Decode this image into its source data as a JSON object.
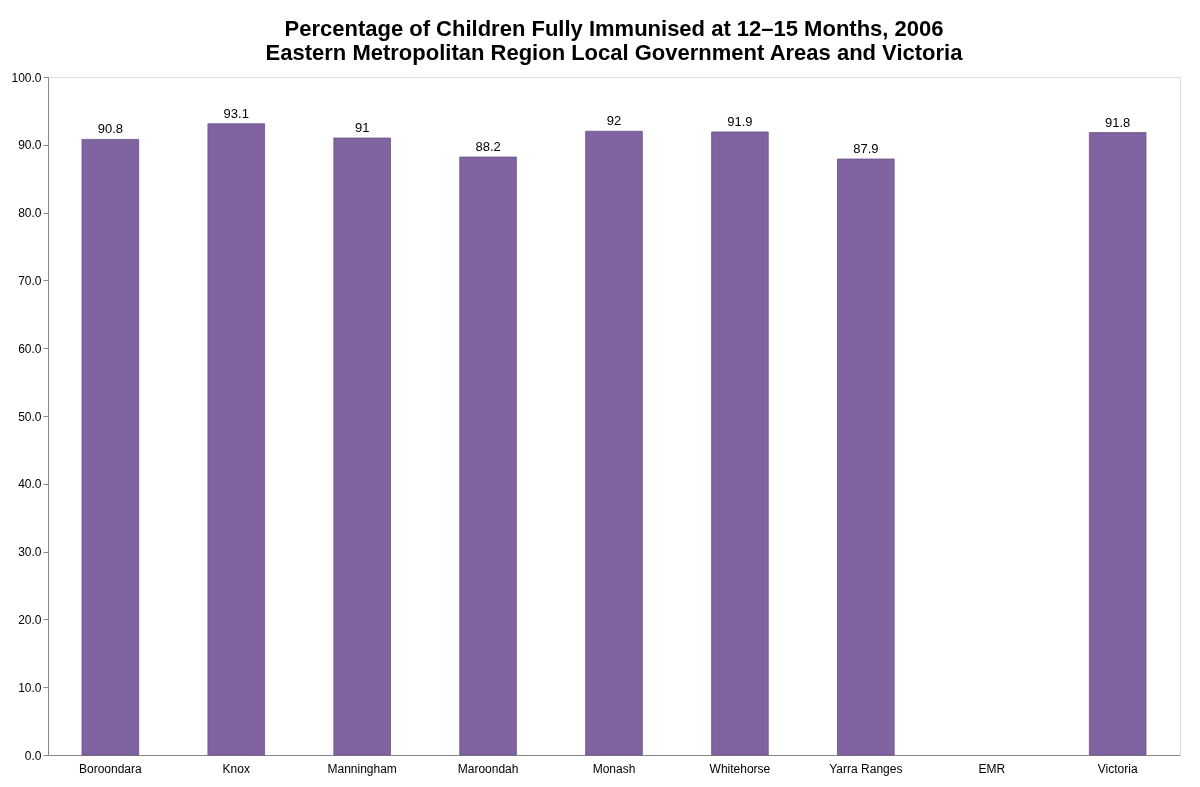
{
  "chart_data": {
    "type": "bar",
    "title": "Percentage of Children Fully Immunised at 12–15 Months, 2006\nEastern Metropolitan Region Local Government Areas and Victoria",
    "categories": [
      "Boroondara",
      "Knox",
      "Manningham",
      "Maroondah",
      "Monash",
      "Whitehorse",
      "Yarra Ranges",
      "EMR",
      "Victoria"
    ],
    "values": [
      90.8,
      93.1,
      91,
      88.2,
      92,
      91.9,
      87.9,
      null,
      91.8
    ],
    "color": "#8064a2",
    "ylim": [
      0,
      100
    ],
    "yticks": [
      {
        "value": 0,
        "label": "0.0"
      },
      {
        "value": 10,
        "label": "10.0"
      },
      {
        "value": 20,
        "label": "20.0"
      },
      {
        "value": 30,
        "label": "30.0"
      },
      {
        "value": 40,
        "label": "40.0"
      },
      {
        "value": 50,
        "label": "50.0"
      },
      {
        "value": 60,
        "label": "60.0"
      },
      {
        "value": 70,
        "label": "70.0"
      },
      {
        "value": 80,
        "label": "80.0"
      },
      {
        "value": 90,
        "label": "90.0"
      },
      {
        "value": 100,
        "label": "100.0"
      }
    ],
    "data_labels": true,
    "grid": false
  }
}
